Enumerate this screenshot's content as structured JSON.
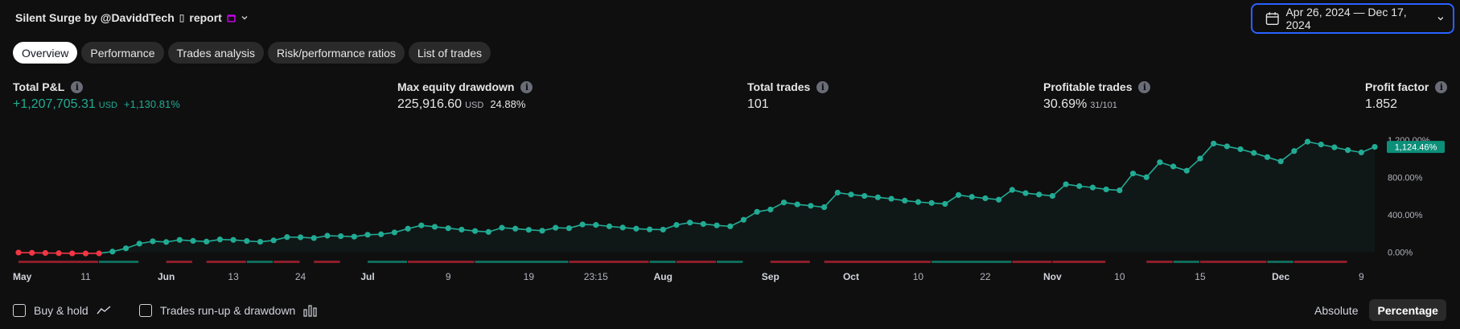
{
  "header": {
    "title": "Silent Surge by @DaviddTech",
    "title_suffix": "report",
    "date_range": "Apr 26, 2024 — Dec 17, 2024"
  },
  "tabs": [
    {
      "label": "Overview",
      "active": true
    },
    {
      "label": "Performance"
    },
    {
      "label": "Trades analysis"
    },
    {
      "label": "Risk/performance ratios"
    },
    {
      "label": "List of trades"
    }
  ],
  "metrics": {
    "total_pl": {
      "label": "Total P&L",
      "value": "+1,207,705.31",
      "unit": "USD",
      "pct": "+1,130.81%"
    },
    "max_dd": {
      "label": "Max equity drawdown",
      "value": "225,916.60",
      "unit": "USD",
      "pct": "24.88%"
    },
    "total_trades": {
      "label": "Total trades",
      "value": "101"
    },
    "profitable": {
      "label": "Profitable trades",
      "value": "30.69%",
      "sub": "31/101"
    },
    "profit_factor": {
      "label": "Profit factor",
      "value": "1.852"
    }
  },
  "colors": {
    "accent": "#22ab94",
    "loss": "#f23645",
    "focus": "#2962ff"
  },
  "chart_data": {
    "type": "line",
    "ylabel_ticks": [
      "0.00%",
      "400.00%",
      "800.00%",
      "1,200.00%"
    ],
    "ylim": [
      -40,
      1250
    ],
    "last_value_label": "1,124.46%",
    "xticks": [
      {
        "label": "May",
        "bold": true,
        "i": 0
      },
      {
        "label": "11",
        "i": 5
      },
      {
        "label": "Jun",
        "bold": true,
        "i": 11
      },
      {
        "label": "13",
        "i": 16
      },
      {
        "label": "24",
        "i": 21
      },
      {
        "label": "Jul",
        "bold": true,
        "i": 26
      },
      {
        "label": "9",
        "i": 32
      },
      {
        "label": "19",
        "i": 38
      },
      {
        "label": "23:15",
        "i": 43
      },
      {
        "label": "Aug",
        "bold": true,
        "i": 48
      },
      {
        "label": "Sep",
        "bold": true,
        "i": 56
      },
      {
        "label": "Oct",
        "bold": true,
        "i": 62
      },
      {
        "label": "10",
        "i": 67
      },
      {
        "label": "22",
        "i": 72
      },
      {
        "label": "Nov",
        "bold": true,
        "i": 77
      },
      {
        "label": "10",
        "i": 82
      },
      {
        "label": "15",
        "i": 88
      },
      {
        "label": "Dec",
        "bold": true,
        "i": 94
      },
      {
        "label": "9",
        "i": 100
      }
    ],
    "values": [
      -5,
      -8,
      -10,
      -12,
      -14,
      -15,
      -14,
      5,
      40,
      90,
      115,
      108,
      130,
      120,
      112,
      135,
      130,
      118,
      110,
      125,
      160,
      158,
      150,
      175,
      170,
      165,
      185,
      190,
      210,
      250,
      285,
      270,
      255,
      240,
      225,
      215,
      260,
      250,
      238,
      228,
      260,
      255,
      295,
      290,
      275,
      262,
      250,
      242,
      240,
      290,
      315,
      300,
      285,
      275,
      345,
      430,
      455,
      530,
      510,
      495,
      480,
      635,
      615,
      600,
      585,
      570,
      550,
      535,
      525,
      515,
      610,
      590,
      575,
      560,
      665,
      630,
      615,
      600,
      725,
      705,
      690,
      670,
      660,
      840,
      800,
      960,
      915,
      870,
      1000,
      1160,
      1130,
      1100,
      1060,
      1015,
      970,
      1080,
      1180,
      1150,
      1120,
      1090,
      1065,
      1124.46
    ],
    "trade_bars": [
      {
        "from": 0,
        "to": 6,
        "color": "loss"
      },
      {
        "from": 6,
        "to": 9,
        "color": "win"
      },
      {
        "from": 11,
        "to": 13,
        "color": "loss"
      },
      {
        "from": 14,
        "to": 17,
        "color": "loss"
      },
      {
        "from": 17,
        "to": 19,
        "color": "win"
      },
      {
        "from": 19,
        "to": 21,
        "color": "loss"
      },
      {
        "from": 22,
        "to": 24,
        "color": "loss"
      },
      {
        "from": 26,
        "to": 29,
        "color": "win"
      },
      {
        "from": 29,
        "to": 34,
        "color": "loss"
      },
      {
        "from": 34,
        "to": 41,
        "color": "win"
      },
      {
        "from": 41,
        "to": 47,
        "color": "loss"
      },
      {
        "from": 47,
        "to": 49,
        "color": "win"
      },
      {
        "from": 49,
        "to": 52,
        "color": "loss"
      },
      {
        "from": 52,
        "to": 54,
        "color": "win"
      },
      {
        "from": 56,
        "to": 59,
        "color": "loss"
      },
      {
        "from": 60,
        "to": 68,
        "color": "loss"
      },
      {
        "from": 68,
        "to": 74,
        "color": "win"
      },
      {
        "from": 74,
        "to": 77,
        "color": "loss"
      },
      {
        "from": 77,
        "to": 81,
        "color": "loss"
      },
      {
        "from": 84,
        "to": 86,
        "color": "loss"
      },
      {
        "from": 86,
        "to": 88,
        "color": "win"
      },
      {
        "from": 88,
        "to": 93,
        "color": "loss"
      },
      {
        "from": 93,
        "to": 95,
        "color": "win"
      },
      {
        "from": 95,
        "to": 99,
        "color": "loss"
      }
    ]
  },
  "bottom": {
    "buy_hold": "Buy & hold",
    "runup": "Trades run-up & drawdown",
    "absolute": "Absolute",
    "percentage": "Percentage"
  }
}
